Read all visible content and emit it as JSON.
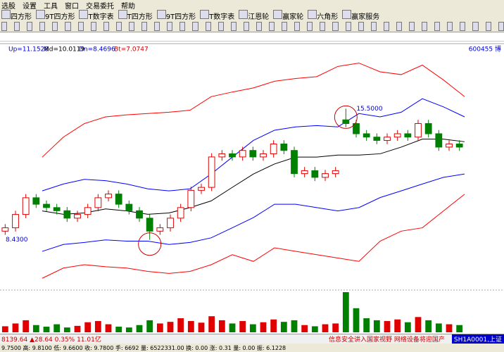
{
  "menu": [
    "选股",
    "设置",
    "工具",
    "窗口",
    "交易委托",
    "帮助"
  ],
  "tabs": [
    "四方形",
    "9T四方形",
    "T数字表",
    "T四方形",
    "9T四方形",
    "T数字表",
    "江恩轮",
    "赢家轮",
    "六角形",
    "赢家服务"
  ],
  "chart_data": {
    "type": "candlestick",
    "code": "600455 博",
    "indicators": [
      "Up=11.1528",
      "Md=10.0119",
      "Dn=8.4696",
      "Bt=7.0747"
    ],
    "ylim": [
      5.8,
      18.4
    ],
    "open": [
      8.9,
      9.08,
      9.8,
      10.7,
      10.35,
      10.17,
      10.0,
      9.6,
      9.8,
      10.17,
      10.7,
      10.9,
      10.35,
      10.0,
      9.6,
      8.9,
      9.08,
      9.6,
      10.17,
      11.1,
      11.26,
      12.9,
      13.07,
      12.9,
      13.25,
      12.9,
      13.07,
      13.6,
      13.25,
      12.0,
      12.16,
      11.8,
      12.0,
      14.9,
      14.7,
      14.15,
      13.97,
      13.79,
      13.97,
      14.15,
      13.97,
      14.7,
      14.15,
      13.43,
      13.6
    ],
    "high": [
      9.28,
      10.0,
      10.9,
      10.9,
      10.55,
      10.37,
      10.2,
      10.0,
      10.37,
      10.9,
      11.1,
      11.1,
      10.55,
      10.2,
      9.8,
      9.28,
      9.8,
      10.37,
      11.3,
      11.46,
      13.1,
      13.27,
      13.27,
      13.45,
      13.45,
      13.27,
      13.8,
      13.8,
      13.45,
      12.36,
      12.36,
      12.2,
      12.36,
      15.5,
      14.9,
      14.35,
      14.17,
      14.17,
      14.35,
      14.35,
      14.9,
      14.9,
      14.35,
      13.8,
      13.8
    ],
    "low": [
      8.7,
      8.88,
      9.6,
      10.15,
      9.97,
      9.8,
      9.4,
      9.4,
      9.6,
      9.97,
      10.5,
      10.15,
      9.8,
      9.4,
      8.43,
      8.7,
      8.88,
      9.4,
      9.97,
      10.9,
      11.06,
      12.7,
      12.7,
      12.7,
      12.7,
      12.7,
      12.87,
      13.05,
      11.8,
      11.8,
      11.6,
      11.6,
      11.8,
      14.5,
      13.95,
      13.77,
      13.59,
      13.59,
      13.77,
      13.77,
      13.77,
      13.95,
      13.23,
      13.23,
      13.23
    ],
    "close": [
      9.08,
      9.8,
      10.7,
      10.35,
      10.17,
      10.0,
      9.6,
      9.8,
      10.17,
      10.7,
      10.9,
      10.35,
      10.0,
      9.6,
      8.9,
      9.08,
      9.6,
      10.17,
      11.1,
      11.26,
      12.9,
      13.07,
      12.9,
      13.25,
      12.9,
      13.07,
      13.6,
      13.25,
      12.0,
      12.16,
      11.8,
      12.0,
      12.16,
      14.7,
      14.15,
      13.97,
      13.79,
      13.97,
      14.15,
      13.97,
      14.7,
      14.15,
      13.43,
      13.6,
      13.43
    ],
    "up_color": "#e00000",
    "down_color": "#008000",
    "bands": [
      {
        "color": "#ff0000",
        "values": [
          null,
          null,
          12.89,
          13.97,
          14.7,
          15.06,
          15.17,
          15.24,
          15.31,
          15.42,
          16.15,
          16.4,
          16.62,
          16.98,
          17.13,
          17.23,
          17.78,
          17.96,
          17.49,
          17.34,
          17.85,
          17.05,
          16.15
        ]
      },
      {
        "color": "#0000ff",
        "values": [
          null,
          null,
          11.07,
          11.44,
          11.69,
          11.62,
          11.44,
          11.18,
          11.07,
          11.18,
          11.98,
          12.89,
          13.79,
          14.34,
          14.52,
          14.59,
          14.52,
          15.24,
          15.06,
          15.31,
          16.04,
          15.6,
          15.06
        ]
      },
      {
        "color": "#000000",
        "values": [
          null,
          null,
          9.99,
          9.81,
          9.88,
          10.1,
          9.99,
          9.81,
          9.88,
          10.17,
          10.53,
          11.26,
          11.98,
          12.52,
          12.89,
          12.89,
          13.0,
          13.0,
          13.07,
          13.43,
          13.86,
          13.86,
          13.72
        ]
      },
      {
        "color": "#0000ff",
        "values": [
          null,
          null,
          7.81,
          8.18,
          8.29,
          8.43,
          8.36,
          8.36,
          8.18,
          8.29,
          8.54,
          9.08,
          9.63,
          10.35,
          10.35,
          10.17,
          9.99,
          10.17,
          10.71,
          11.07,
          11.44,
          11.8,
          11.98
        ]
      },
      {
        "color": "#ff0000",
        "values": [
          null,
          null,
          6.36,
          6.91,
          7.09,
          6.98,
          6.91,
          6.73,
          6.62,
          6.73,
          7.09,
          7.63,
          7.27,
          8.0,
          7.81,
          7.63,
          7.45,
          7.27,
          8.36,
          8.9,
          9.08,
          9.99,
          10.89
        ]
      }
    ],
    "annotations": [
      {
        "label": "15.5000",
        "value": 15.5,
        "index": 33
      },
      {
        "label": "8.4300",
        "value": 8.43,
        "index": 14
      }
    ],
    "volume": {
      "ylim": [
        0,
        100
      ],
      "values": [
        15,
        22,
        30,
        18,
        14,
        20,
        12,
        16,
        25,
        28,
        20,
        14,
        12,
        18,
        30,
        22,
        26,
        35,
        28,
        24,
        40,
        30,
        22,
        28,
        20,
        25,
        32,
        26,
        30,
        18,
        15,
        20,
        22,
        100,
        60,
        35,
        30,
        28,
        32,
        25,
        38,
        30,
        22,
        20,
        18
      ]
    }
  },
  "status": {
    "index": "8139.64 ▲28.64 0.35% 11.01亿",
    "news": "信息安全讲入国家视野 网络设备将迎国产",
    "code": "SH1A0001,上证"
  },
  "footer": "9.7500 高: 9.8100 低: 9.6600 收: 9.7800 手: 6692 量: 6522331.00 换: 0.00 涨: 0.31 量: 0.00 振: 6.1228"
}
